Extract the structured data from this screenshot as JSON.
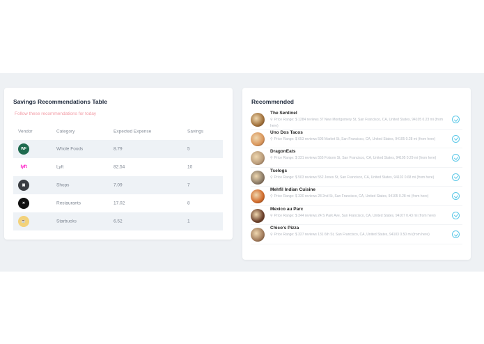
{
  "savings": {
    "title": "Savings Recommendations Table",
    "subtitle": "Follow these recommendations for today",
    "columns": [
      "Vendor",
      "Category",
      "Expected Expense",
      "Savings"
    ],
    "rows": [
      {
        "vendor_icon": "whole-foods-logo",
        "icon_color": "#1f6b4f",
        "icon_text": "WF",
        "category": "Whole Foods",
        "expense": "8.79",
        "savings": "5"
      },
      {
        "vendor_icon": "lyft-logo",
        "icon_color": "#ff00bf",
        "icon_text": "lyft",
        "category": "Lyft",
        "expense": "82.54",
        "savings": "10"
      },
      {
        "vendor_icon": "shop-icon",
        "icon_color": "#3a3d42",
        "icon_text": "▣",
        "category": "Shops",
        "expense": "7.09",
        "savings": "7"
      },
      {
        "vendor_icon": "restaurant-icon",
        "icon_color": "#111111",
        "icon_text": "✕",
        "category": "Restaurants",
        "expense": "17.02",
        "savings": "8"
      },
      {
        "vendor_icon": "starbucks-cup-icon",
        "icon_color": "#f3d27a",
        "icon_text": "☕",
        "category": "Starbucks",
        "expense": "6.52",
        "savings": "1"
      }
    ]
  },
  "recommended": {
    "title": "Recommended",
    "items": [
      {
        "name": "The Sentinel",
        "desc": "Price Range: $ 1284 reviews 37 New Montgomery St, San Francisco, CA, United States, 94105 0.23 mi (from here)",
        "thumb_color": "#a0703a"
      },
      {
        "name": "Uno Dos Tacos",
        "desc": "Price Range: $ 653 reviews 595 Market St, San Francisco, CA, United States, 94105 0.28 mi (from here)",
        "thumb_color": "#d9955a"
      },
      {
        "name": "DragonEats",
        "desc": "Price Range: $ 331 reviews 555 Folsom St, San Francisco, CA, United States, 94105 0.29 mi (from here)",
        "thumb_color": "#b89a78"
      },
      {
        "name": "Tselogs",
        "desc": "Price Range: $ 503 reviews 552 Jones St, San Francisco, CA, United States, 94102 0.68 mi (from here)",
        "thumb_color": "#8a7a66"
      },
      {
        "name": "Mehfil Indian Cuisine",
        "desc": "Price Range: $ 330 reviews 28 2nd St, San Francisco, CA, United States, 94105 0.28 mi (from here)",
        "thumb_color": "#d06a2a"
      },
      {
        "name": "Mexico au Parc",
        "desc": "Price Range: $ 344 reviews 24 S Park Ave, San Francisco, CA, United States, 94107 0.43 mi (from here)",
        "thumb_color": "#6a3f2a"
      },
      {
        "name": "Chico's Pizza",
        "desc": "Price Range: $ 327 reviews 131 6th St, San Francisco, CA, United States, 94103 0.50 mi (from here)",
        "thumb_color": "#a07a5a"
      }
    ]
  }
}
